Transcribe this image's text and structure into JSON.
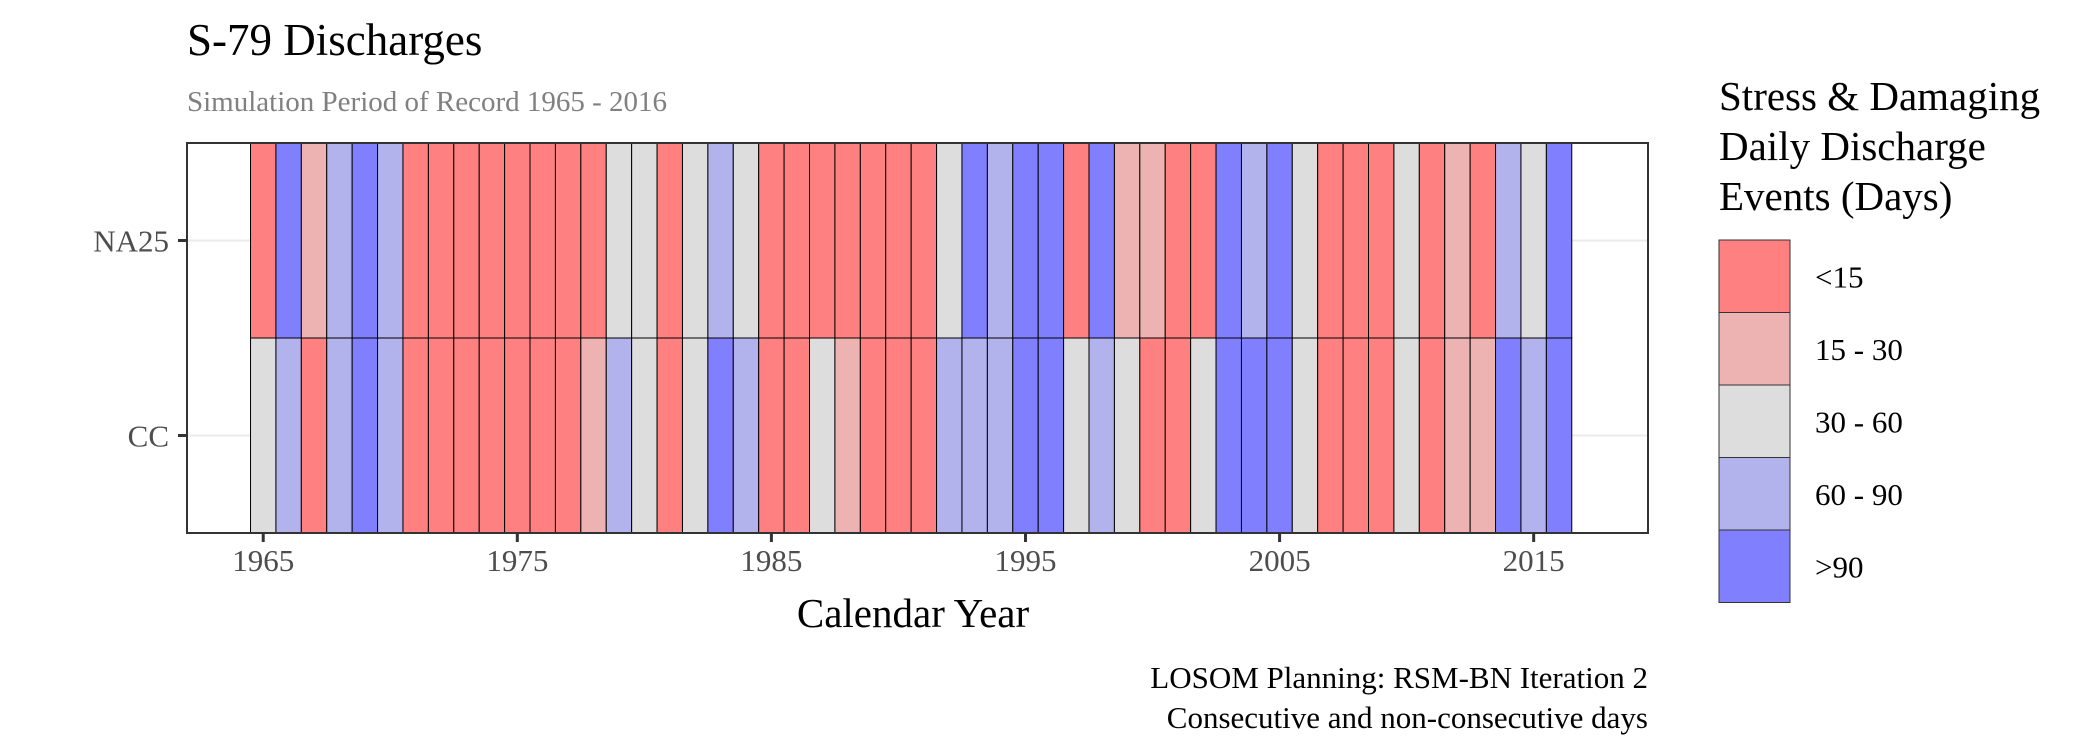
{
  "chart_data": {
    "type": "heatmap",
    "title": "S-79 Discharges",
    "subtitle": "Simulation Period of Record 1965 - 2016",
    "xlabel": "Calendar Year",
    "ylabel": "",
    "xlim": [
      1962,
      2019.5
    ],
    "x_ticks": [
      "1965",
      "1975",
      "1985",
      "1995",
      "2005",
      "2015"
    ],
    "rows": [
      "NA25",
      "CC"
    ],
    "years": [
      1965,
      1966,
      1967,
      1968,
      1969,
      1970,
      1971,
      1972,
      1973,
      1974,
      1975,
      1976,
      1977,
      1978,
      1979,
      1980,
      1981,
      1982,
      1983,
      1984,
      1985,
      1986,
      1987,
      1988,
      1989,
      1990,
      1991,
      1992,
      1993,
      1994,
      1995,
      1996,
      1997,
      1998,
      1999,
      2000,
      2001,
      2002,
      2003,
      2004,
      2005,
      2006,
      2007,
      2008,
      2009,
      2010,
      2011,
      2012,
      2013,
      2014,
      2015,
      2016
    ],
    "values": {
      "NA25": [
        "<15",
        ">90",
        "15 - 30",
        "60 - 90",
        ">90",
        "60 - 90",
        "<15",
        "<15",
        "<15",
        "<15",
        "<15",
        "<15",
        "<15",
        "<15",
        "30 - 60",
        "30 - 60",
        "<15",
        "30 - 60",
        "60 - 90",
        "30 - 60",
        "<15",
        "<15",
        "<15",
        "<15",
        "<15",
        "<15",
        "<15",
        "30 - 60",
        ">90",
        "60 - 90",
        ">90",
        ">90",
        "<15",
        ">90",
        "15 - 30",
        "15 - 30",
        "<15",
        "<15",
        ">90",
        "60 - 90",
        ">90",
        "30 - 60",
        "<15",
        "<15",
        "<15",
        "30 - 60",
        "<15",
        "15 - 30",
        "<15",
        "60 - 90",
        "30 - 60",
        ">90"
      ],
      "CC": [
        "30 - 60",
        "60 - 90",
        "<15",
        "60 - 90",
        ">90",
        "60 - 90",
        "<15",
        "<15",
        "<15",
        "<15",
        "<15",
        "<15",
        "<15",
        "15 - 30",
        "60 - 90",
        "30 - 60",
        "<15",
        "30 - 60",
        ">90",
        "60 - 90",
        "<15",
        "<15",
        "30 - 60",
        "15 - 30",
        "<15",
        "<15",
        "<15",
        "60 - 90",
        "60 - 90",
        "60 - 90",
        ">90",
        ">90",
        "30 - 60",
        "60 - 90",
        "30 - 60",
        "<15",
        "<15",
        "30 - 60",
        ">90",
        ">90",
        ">90",
        "30 - 60",
        "<15",
        "<15",
        "<15",
        "30 - 60",
        "<15",
        "15 - 30",
        "15 - 30",
        ">90",
        "60 - 90",
        ">90"
      ]
    },
    "legend": {
      "title_lines": [
        "Stress & Damaging",
        "Daily Discharge",
        "Events (Days)"
      ],
      "placement": "right",
      "items": [
        {
          "label": "<15",
          "color": "#ff8080"
        },
        {
          "label": "15 - 30",
          "color": "#edb2b2"
        },
        {
          "label": "30 - 60",
          "color": "#dddddd"
        },
        {
          "label": "60 - 90",
          "color": "#b2b2ed"
        },
        {
          "label": ">90",
          "color": "#8080ff"
        }
      ]
    },
    "caption_lines": [
      "LOSOM Planning: RSM-BN Iteration 2",
      "Consecutive and non-consecutive days"
    ],
    "grid": true
  }
}
